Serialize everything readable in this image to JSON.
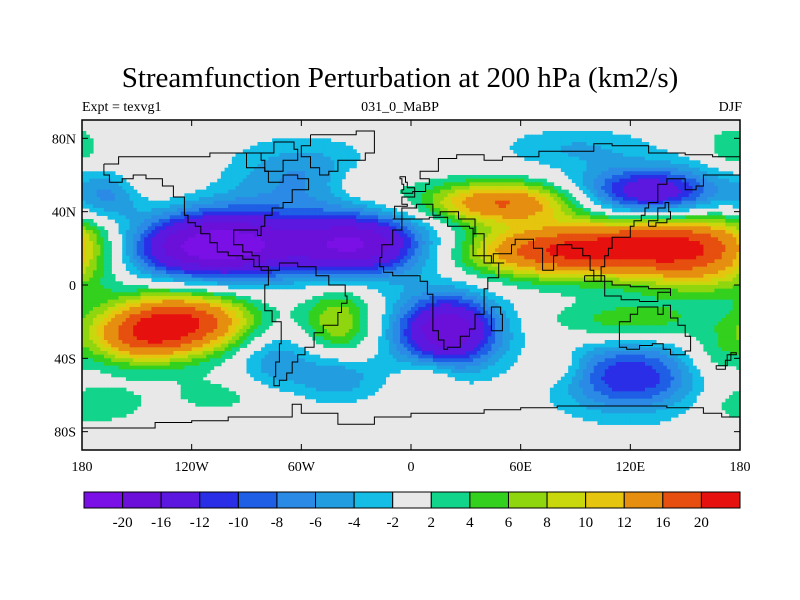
{
  "header": {
    "title": "Streamfunction Perturbation at 200 hPa (km2/s)",
    "left_label": "Expt = texvg1",
    "center_label": "031_0_MaBP",
    "right_label": "DJF"
  },
  "chart_data": {
    "type": "heatmap",
    "title": "Streamfunction Perturbation at 200 hPa (km2/s)",
    "xlim": [
      -180,
      180
    ],
    "ylim": [
      -90,
      90
    ],
    "x_ticks": [
      {
        "value": -180,
        "label": "180"
      },
      {
        "value": -120,
        "label": "120W"
      },
      {
        "value": -60,
        "label": "60W"
      },
      {
        "value": 0,
        "label": "0"
      },
      {
        "value": 60,
        "label": "60E"
      },
      {
        "value": 120,
        "label": "120E"
      },
      {
        "value": 180,
        "label": "180"
      }
    ],
    "y_ticks": [
      {
        "value": 80,
        "label": "80N"
      },
      {
        "value": 40,
        "label": "40N"
      },
      {
        "value": 0,
        "label": "0"
      },
      {
        "value": -40,
        "label": "40S"
      },
      {
        "value": -80,
        "label": "80S"
      }
    ],
    "contour_levels": [
      -20,
      -16,
      -12,
      -10,
      -8,
      -6,
      -4,
      -2,
      2,
      4,
      6,
      8,
      10,
      12,
      16,
      20
    ],
    "colorbar_labels": [
      "-20",
      "-16",
      "-12",
      "-10",
      "-8",
      "-6",
      "-4",
      "-2",
      "2",
      "4",
      "6",
      "8",
      "10",
      "12",
      "16",
      "20"
    ],
    "colors": [
      "#7a10e6",
      "#6a10d8",
      "#5d18e0",
      "#2a2ee6",
      "#1f5fe6",
      "#2b8ae6",
      "#229ee0",
      "#13bde6",
      "#e8e8e8",
      "#12d48a",
      "#33d11e",
      "#8fd60f",
      "#c8d80d",
      "#e6c50f",
      "#e68e0f",
      "#e64f0f",
      "#e6100f"
    ],
    "neutral_color": "#e8e8e8",
    "centers": [
      {
        "lon": -125,
        "lat": -20,
        "value": 20,
        "rx": 28,
        "ry": 12
      },
      {
        "lon": -150,
        "lat": -30,
        "value": 10,
        "rx": 20,
        "ry": 10
      },
      {
        "lon": -100,
        "lat": 22,
        "value": -20,
        "rx": 28,
        "ry": 14
      },
      {
        "lon": -140,
        "lat": 20,
        "value": -10,
        "rx": 25,
        "ry": 12
      },
      {
        "lon": -30,
        "lat": 22,
        "value": -20,
        "rx": 28,
        "ry": 12
      },
      {
        "lon": 20,
        "lat": -25,
        "value": -20,
        "rx": 20,
        "ry": 14
      },
      {
        "lon": 145,
        "lat": 22,
        "value": 20,
        "rx": 40,
        "ry": 12
      },
      {
        "lon": 75,
        "lat": 18,
        "value": 16,
        "rx": 35,
        "ry": 10
      },
      {
        "lon": 50,
        "lat": 45,
        "value": 16,
        "rx": 30,
        "ry": 8
      },
      {
        "lon": 130,
        "lat": 50,
        "value": -16,
        "rx": 28,
        "ry": 10
      },
      {
        "lon": -60,
        "lat": 60,
        "value": -6,
        "rx": 28,
        "ry": 14
      },
      {
        "lon": -165,
        "lat": 48,
        "value": -6,
        "rx": 12,
        "ry": 10
      },
      {
        "lon": -25,
        "lat": 55,
        "value": 4,
        "rx": 14,
        "ry": 7
      },
      {
        "lon": -40,
        "lat": -20,
        "value": 8,
        "rx": 14,
        "ry": 14
      },
      {
        "lon": -75,
        "lat": -40,
        "value": -6,
        "rx": 16,
        "ry": 14
      },
      {
        "lon": -40,
        "lat": -50,
        "value": -6,
        "rx": 16,
        "ry": 10
      },
      {
        "lon": 120,
        "lat": -50,
        "value": -12,
        "rx": 28,
        "ry": 14
      },
      {
        "lon": 120,
        "lat": -20,
        "value": 6,
        "rx": 30,
        "ry": 8
      },
      {
        "lon": 165,
        "lat": -40,
        "value": 4,
        "rx": 12,
        "ry": 10
      },
      {
        "lon": 80,
        "lat": -45,
        "value": 4,
        "rx": 12,
        "ry": 8
      },
      {
        "lon": 10,
        "lat": -50,
        "value": 4,
        "rx": 10,
        "ry": 7
      },
      {
        "lon": -140,
        "lat": 60,
        "value": 2,
        "rx": 18,
        "ry": 12
      },
      {
        "lon": 160,
        "lat": 5,
        "value": 5,
        "rx": 25,
        "ry": 10
      },
      {
        "lon": -175,
        "lat": -65,
        "value": 4,
        "rx": 20,
        "ry": 8
      },
      {
        "lon": -100,
        "lat": -60,
        "value": 3,
        "rx": 25,
        "ry": 8
      },
      {
        "lon": 90,
        "lat": 75,
        "value": -4,
        "rx": 30,
        "ry": 8
      },
      {
        "lon": 175,
        "lat": 75,
        "value": 4,
        "rx": 10,
        "ry": 8
      }
    ]
  }
}
